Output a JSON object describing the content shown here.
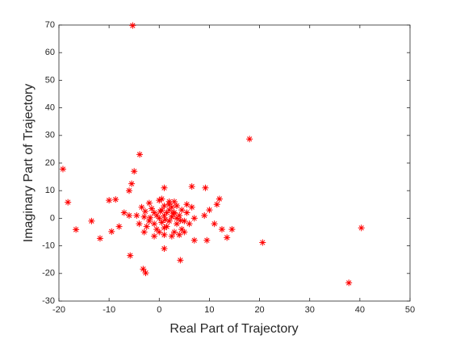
{
  "chart_data": {
    "type": "scatter",
    "xlabel": "Real Part of Trajectory",
    "ylabel": "Imaginary Part of Trajectory",
    "color": "#ff0000",
    "marker": "*",
    "xlim": [
      -20,
      50
    ],
    "xticks": [
      -20,
      -10,
      0,
      10,
      20,
      30,
      40,
      50
    ],
    "ylim": [
      -30,
      70
    ],
    "yticks": [
      -30,
      -20,
      -10,
      0,
      10,
      20,
      30,
      40,
      50,
      60,
      70
    ],
    "x": [
      -5.3,
      18.0,
      -19.2,
      -18.2,
      -16.6,
      -13.5,
      -11.8,
      -3.9,
      -5.0,
      -5.5,
      -6.0,
      -5.8,
      -3.2,
      -2.7,
      1.0,
      4.2,
      20.6,
      37.8,
      40.3,
      9.2,
      6.5,
      1.0,
      -10.0,
      -8.7,
      -9.5,
      -8.0,
      -7.0,
      -6.0,
      12.0,
      11.5,
      14.5,
      13.5,
      9.5,
      7.0,
      12.5,
      11.0,
      10.0,
      9.0,
      0,
      1,
      2,
      -1,
      3,
      -2,
      0.5,
      1.5,
      2.5,
      -0.5,
      3.5,
      4,
      -3,
      -1.5,
      2,
      0,
      4.5,
      5,
      -2.5,
      1,
      3,
      -1,
      0.5,
      2.5,
      1.5,
      -0.5,
      3.5,
      4.5,
      5.5,
      6,
      -3.5,
      -4,
      2,
      1,
      -2,
      0,
      3,
      2.5,
      -1,
      6.5,
      7,
      -4.5,
      5,
      4,
      -3,
      0.5,
      3.5,
      1.2,
      2.8,
      -1.8,
      0.2,
      4.2,
      2,
      1,
      -2.8,
      5.5
    ],
    "values": [
      69.8,
      28.7,
      17.8,
      5.8,
      -4.1,
      -1.0,
      -7.3,
      23.1,
      17.0,
      12.5,
      10.0,
      -13.5,
      -18.4,
      -19.8,
      -11.0,
      -15.2,
      -8.8,
      -23.4,
      -3.5,
      11.0,
      11.5,
      11.0,
      6.5,
      6.8,
      -4.8,
      -3.0,
      2.0,
      1.0,
      7.0,
      5.0,
      -4.0,
      -7.0,
      -8.0,
      -8.0,
      -4.0,
      -2.0,
      3.0,
      1.0,
      0,
      1,
      -1,
      2,
      2,
      -1,
      3,
      -3,
      4,
      -4,
      -2,
      1,
      0.5,
      3.5,
      5,
      -5,
      3,
      -1,
      -3,
      4.5,
      -5,
      -2,
      -1.5,
      0.5,
      2,
      1,
      4.5,
      -4,
      2,
      -2,
      4,
      -2,
      6,
      -6,
      5.5,
      6.5,
      6,
      -6.5,
      -6.5,
      4,
      0,
      1,
      -5,
      -6,
      -5,
      7,
      0,
      -0.5,
      1.8,
      0.2,
      2.5,
      -0.8,
      3,
      -3.5,
      2.5,
      5
    ]
  }
}
